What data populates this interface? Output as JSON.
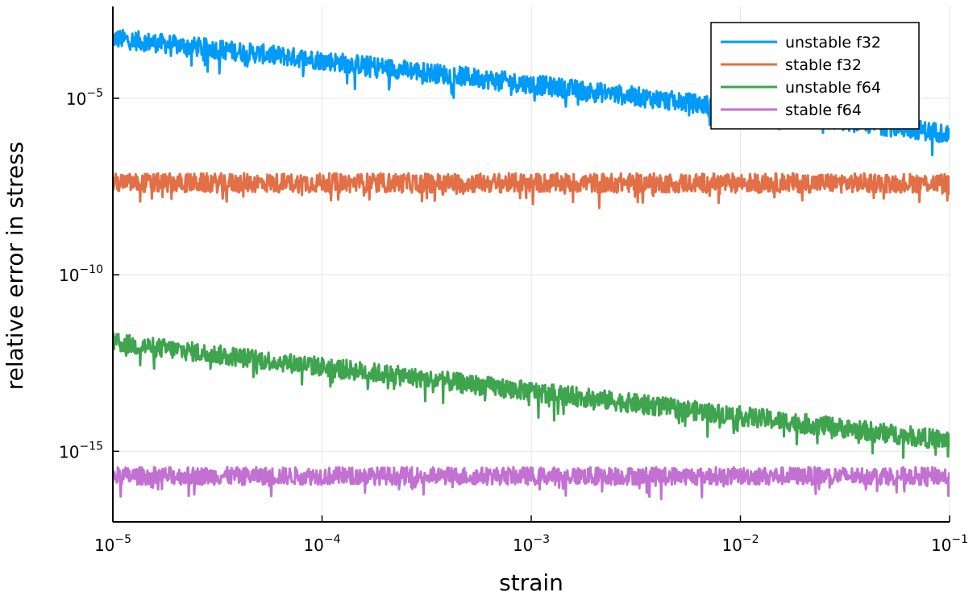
{
  "chart_data": {
    "type": "line",
    "title": "",
    "xlabel": "strain",
    "ylabel": "relative error in stress",
    "x_scale": "log",
    "y_scale": "log",
    "xlim": [
      1e-05,
      0.1
    ],
    "ylim": [
      1e-17,
      0.004
    ],
    "grid": true,
    "legend_position": "top-right",
    "x_ticks": [
      {
        "value": 1e-05,
        "base": "10",
        "exp": "−5"
      },
      {
        "value": 0.0001,
        "base": "10",
        "exp": "−4"
      },
      {
        "value": 0.001,
        "base": "10",
        "exp": "−3"
      },
      {
        "value": 0.01,
        "base": "10",
        "exp": "−2"
      },
      {
        "value": 0.1,
        "base": "10",
        "exp": "−1"
      }
    ],
    "y_ticks": [
      {
        "value": 1e-05,
        "base": "10",
        "exp": "−5"
      },
      {
        "value": 1e-10,
        "base": "10",
        "exp": "−10"
      },
      {
        "value": 1e-15,
        "base": "10",
        "exp": "−15"
      }
    ],
    "series": [
      {
        "name": "unstable f32",
        "color": "#009af9",
        "x": [
          1e-05,
          0.0001,
          0.001,
          0.01,
          0.1
        ],
        "y": [
          0.0005,
          0.00012,
          2.5e-05,
          5e-06,
          1e-06
        ],
        "noise_decades": 0.55
      },
      {
        "name": "stable f32",
        "color": "#e26f46",
        "x": [
          1e-05,
          0.0001,
          0.001,
          0.01,
          0.1
        ],
        "y": [
          4e-08,
          4e-08,
          4e-08,
          4e-08,
          4e-08
        ],
        "noise_decades": 0.55
      },
      {
        "name": "unstable f64",
        "color": "#3ea44e",
        "x": [
          1e-05,
          0.0001,
          0.001,
          0.01,
          0.1
        ],
        "y": [
          1.2e-12,
          2.5e-13,
          5e-14,
          1e-14,
          2e-15
        ],
        "noise_decades": 0.55
      },
      {
        "name": "stable f64",
        "color": "#c271d2",
        "x": [
          1e-05,
          0.0001,
          0.001,
          0.01,
          0.1
        ],
        "y": [
          2e-16,
          2e-16,
          2e-16,
          2e-16,
          2e-16
        ],
        "noise_decades": 0.5
      }
    ]
  }
}
